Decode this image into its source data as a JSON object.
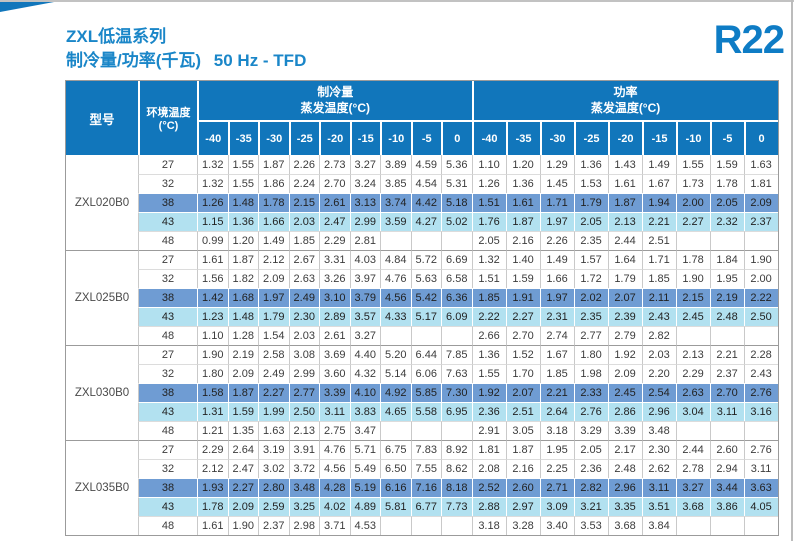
{
  "page": {
    "title_line1": "ZXL低温系列",
    "title_line2": "制冷量/功率(千瓦)",
    "title_freq": "50 Hz - TFD",
    "refrigerant": "R22",
    "colors": {
      "header_blue": "#1176bb",
      "title_blue": "#1a86c8",
      "highlight_row_38": "#6f9cd3",
      "highlight_row_43": "#b2e1f0"
    }
  },
  "table": {
    "header": {
      "model_label": "型号",
      "ambient_line1": "环境温度",
      "ambient_line2": "(°C)",
      "cooling_title": "制冷量",
      "cooling_subtitle": "蒸发温度(°C)",
      "power_title": "功率",
      "power_subtitle": "蒸发温度(°C)"
    },
    "evap_temps": [
      "-40",
      "-35",
      "-30",
      "-25",
      "-20",
      "-15",
      "-10",
      "-5",
      "0"
    ],
    "models": [
      {
        "name": "ZXL020B0",
        "rows": [
          {
            "ambient": "27",
            "highlight": "none",
            "cooling": [
              "1.32",
              "1.55",
              "1.87",
              "2.26",
              "2.73",
              "3.27",
              "3.89",
              "4.59",
              "5.36"
            ],
            "power": [
              "1.10",
              "1.20",
              "1.29",
              "1.36",
              "1.43",
              "1.49",
              "1.55",
              "1.59",
              "1.63"
            ]
          },
          {
            "ambient": "32",
            "highlight": "none",
            "cooling": [
              "1.32",
              "1.55",
              "1.86",
              "2.24",
              "2.70",
              "3.24",
              "3.85",
              "4.54",
              "5.31"
            ],
            "power": [
              "1.26",
              "1.36",
              "1.45",
              "1.53",
              "1.61",
              "1.67",
              "1.73",
              "1.78",
              "1.81"
            ]
          },
          {
            "ambient": "38",
            "highlight": "mid",
            "cooling": [
              "1.26",
              "1.48",
              "1.78",
              "2.15",
              "2.61",
              "3.13",
              "3.74",
              "4.42",
              "5.18"
            ],
            "power": [
              "1.51",
              "1.61",
              "1.71",
              "1.79",
              "1.87",
              "1.94",
              "2.00",
              "2.05",
              "2.09"
            ]
          },
          {
            "ambient": "43",
            "highlight": "light",
            "cooling": [
              "1.15",
              "1.36",
              "1.66",
              "2.03",
              "2.47",
              "2.99",
              "3.59",
              "4.27",
              "5.02"
            ],
            "power": [
              "1.76",
              "1.87",
              "1.97",
              "2.05",
              "2.13",
              "2.21",
              "2.27",
              "2.32",
              "2.37"
            ]
          },
          {
            "ambient": "48",
            "highlight": "none",
            "cooling": [
              "0.99",
              "1.20",
              "1.49",
              "1.85",
              "2.29",
              "2.81",
              "",
              "",
              ""
            ],
            "power": [
              "2.05",
              "2.16",
              "2.26",
              "2.35",
              "2.44",
              "2.51",
              "",
              "",
              ""
            ]
          }
        ]
      },
      {
        "name": "ZXL025B0",
        "rows": [
          {
            "ambient": "27",
            "highlight": "none",
            "cooling": [
              "1.61",
              "1.87",
              "2.12",
              "2.67",
              "3.31",
              "4.03",
              "4.84",
              "5.72",
              "6.69"
            ],
            "power": [
              "1.32",
              "1.40",
              "1.49",
              "1.57",
              "1.64",
              "1.71",
              "1.78",
              "1.84",
              "1.90"
            ]
          },
          {
            "ambient": "32",
            "highlight": "none",
            "cooling": [
              "1.56",
              "1.82",
              "2.09",
              "2.63",
              "3.26",
              "3.97",
              "4.76",
              "5.63",
              "6.58"
            ],
            "power": [
              "1.51",
              "1.59",
              "1.66",
              "1.72",
              "1.79",
              "1.85",
              "1.90",
              "1.95",
              "2.00"
            ]
          },
          {
            "ambient": "38",
            "highlight": "mid",
            "cooling": [
              "1.42",
              "1.68",
              "1.97",
              "2.49",
              "3.10",
              "3.79",
              "4.56",
              "5.42",
              "6.36"
            ],
            "power": [
              "1.85",
              "1.91",
              "1.97",
              "2.02",
              "2.07",
              "2.11",
              "2.15",
              "2.19",
              "2.22"
            ]
          },
          {
            "ambient": "43",
            "highlight": "light",
            "cooling": [
              "1.23",
              "1.48",
              "1.79",
              "2.30",
              "2.89",
              "3.57",
              "4.33",
              "5.17",
              "6.09"
            ],
            "power": [
              "2.22",
              "2.27",
              "2.31",
              "2.35",
              "2.39",
              "2.43",
              "2.45",
              "2.48",
              "2.50"
            ]
          },
          {
            "ambient": "48",
            "highlight": "none",
            "cooling": [
              "1.10",
              "1.28",
              "1.54",
              "2.03",
              "2.61",
              "3.27",
              "",
              "",
              ""
            ],
            "power": [
              "2.66",
              "2.70",
              "2.74",
              "2.77",
              "2.79",
              "2.82",
              "",
              "",
              ""
            ]
          }
        ]
      },
      {
        "name": "ZXL030B0",
        "rows": [
          {
            "ambient": "27",
            "highlight": "none",
            "cooling": [
              "1.90",
              "2.19",
              "2.58",
              "3.08",
              "3.69",
              "4.40",
              "5.20",
              "6.44",
              "7.85"
            ],
            "power": [
              "1.36",
              "1.52",
              "1.67",
              "1.80",
              "1.92",
              "2.03",
              "2.13",
              "2.21",
              "2.28"
            ]
          },
          {
            "ambient": "32",
            "highlight": "none",
            "cooling": [
              "1.80",
              "2.09",
              "2.49",
              "2.99",
              "3.60",
              "4.32",
              "5.14",
              "6.06",
              "7.63"
            ],
            "power": [
              "1.55",
              "1.70",
              "1.85",
              "1.98",
              "2.09",
              "2.20",
              "2.29",
              "2.37",
              "2.43"
            ]
          },
          {
            "ambient": "38",
            "highlight": "mid",
            "cooling": [
              "1.58",
              "1.87",
              "2.27",
              "2.77",
              "3.39",
              "4.10",
              "4.92",
              "5.85",
              "7.30"
            ],
            "power": [
              "1.92",
              "2.07",
              "2.21",
              "2.33",
              "2.45",
              "2.54",
              "2.63",
              "2.70",
              "2.76"
            ]
          },
          {
            "ambient": "43",
            "highlight": "light",
            "cooling": [
              "1.31",
              "1.59",
              "1.99",
              "2.50",
              "3.11",
              "3.83",
              "4.65",
              "5.58",
              "6.95"
            ],
            "power": [
              "2.36",
              "2.51",
              "2.64",
              "2.76",
              "2.86",
              "2.96",
              "3.04",
              "3.11",
              "3.16"
            ]
          },
          {
            "ambient": "48",
            "highlight": "none",
            "cooling": [
              "1.21",
              "1.35",
              "1.63",
              "2.13",
              "2.75",
              "3.47",
              "",
              "",
              ""
            ],
            "power": [
              "2.91",
              "3.05",
              "3.18",
              "3.29",
              "3.39",
              "3.48",
              "",
              "",
              ""
            ]
          }
        ]
      },
      {
        "name": "ZXL035B0",
        "rows": [
          {
            "ambient": "27",
            "highlight": "none",
            "cooling": [
              "2.29",
              "2.64",
              "3.19",
              "3.91",
              "4.76",
              "5.71",
              "6.75",
              "7.83",
              "8.92"
            ],
            "power": [
              "1.81",
              "1.87",
              "1.95",
              "2.05",
              "2.17",
              "2.30",
              "2.44",
              "2.60",
              "2.76"
            ]
          },
          {
            "ambient": "32",
            "highlight": "none",
            "cooling": [
              "2.12",
              "2.47",
              "3.02",
              "3.72",
              "4.56",
              "5.49",
              "6.50",
              "7.55",
              "8.62"
            ],
            "power": [
              "2.08",
              "2.16",
              "2.25",
              "2.36",
              "2.48",
              "2.62",
              "2.78",
              "2.94",
              "3.11"
            ]
          },
          {
            "ambient": "38",
            "highlight": "mid",
            "cooling": [
              "1.93",
              "2.27",
              "2.80",
              "3.48",
              "4.28",
              "5.19",
              "6.16",
              "7.16",
              "8.18"
            ],
            "power": [
              "2.52",
              "2.60",
              "2.71",
              "2.82",
              "2.96",
              "3.11",
              "3.27",
              "3.44",
              "3.63"
            ]
          },
          {
            "ambient": "43",
            "highlight": "light",
            "cooling": [
              "1.78",
              "2.09",
              "2.59",
              "3.25",
              "4.02",
              "4.89",
              "5.81",
              "6.77",
              "7.73"
            ],
            "power": [
              "2.88",
              "2.97",
              "3.09",
              "3.21",
              "3.35",
              "3.51",
              "3.68",
              "3.86",
              "4.05"
            ]
          },
          {
            "ambient": "48",
            "highlight": "none",
            "cooling": [
              "1.61",
              "1.90",
              "2.37",
              "2.98",
              "3.71",
              "4.53",
              "",
              "",
              ""
            ],
            "power": [
              "3.18",
              "3.28",
              "3.40",
              "3.53",
              "3.68",
              "3.84",
              "",
              "",
              ""
            ]
          }
        ]
      }
    ]
  }
}
